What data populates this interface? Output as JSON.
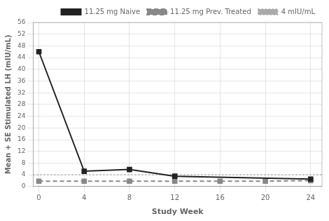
{
  "chart_data": {
    "type": "line",
    "xlabel": "Study Week",
    "ylabel": "Mean + SE Stimulated LH (mIU/mL)",
    "series": [
      {
        "name": "11.25 mg Naive",
        "color": "#222222",
        "marker": "square",
        "line_style": "solid",
        "x": [
          0,
          4,
          8,
          12,
          24
        ],
        "values": [
          46.0,
          5.2,
          5.8,
          3.5,
          2.5
        ]
      },
      {
        "name": "11.25 mg Prev. Treated",
        "color": "#888888",
        "marker": "square",
        "line_style": "dashed",
        "x": [
          0,
          4,
          8,
          12,
          16,
          20,
          24
        ],
        "values": [
          1.8,
          1.8,
          1.8,
          1.8,
          1.8,
          1.8,
          2.0
        ]
      },
      {
        "name": "4 mIU/mL",
        "type": "hline",
        "color": "#aaaaaa",
        "line_style": "dotted",
        "values": [
          4.0
        ]
      }
    ],
    "xlim": [
      -0.5,
      25.0
    ],
    "ylim": [
      0,
      56
    ],
    "xticks": [
      0,
      4,
      8,
      12,
      16,
      20,
      24
    ],
    "yticks": [
      0,
      4,
      8,
      12,
      16,
      20,
      24,
      28,
      32,
      36,
      40,
      44,
      48,
      52,
      56
    ],
    "grid": true,
    "legend": "upper right"
  }
}
